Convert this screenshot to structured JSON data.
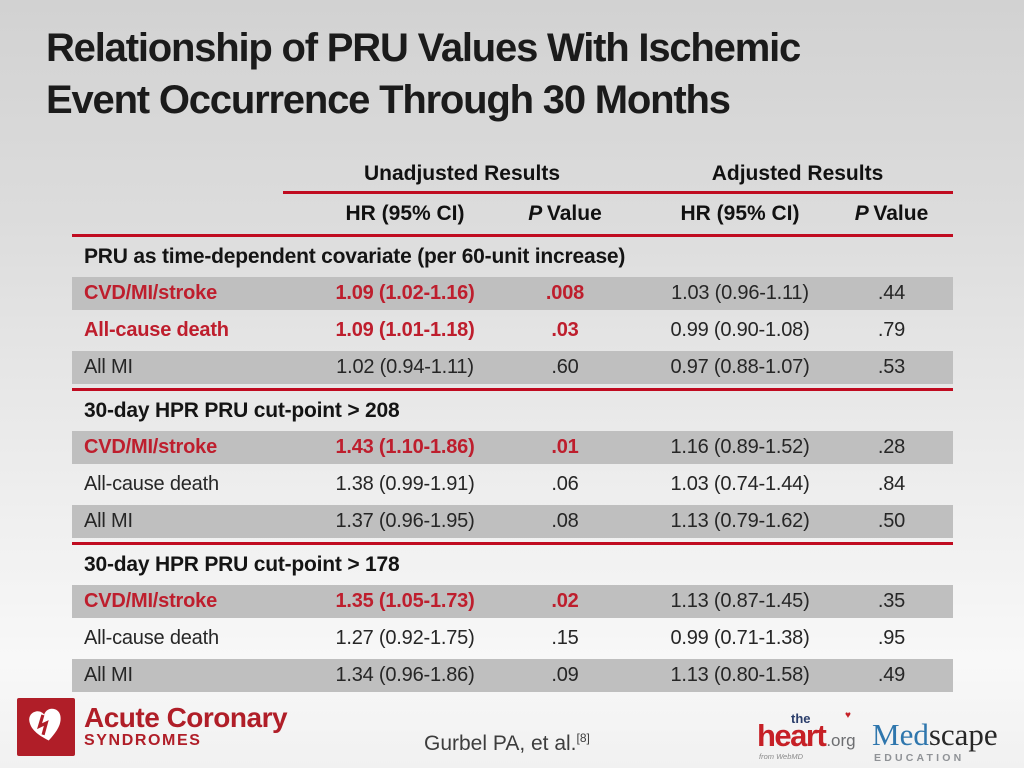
{
  "colors": {
    "accent_red": "#be1e2d",
    "line_red": "#c00b20",
    "row_shade": "#bfbfbf",
    "text_dark": "#262626",
    "bg_top": "#d2d2d2",
    "bg_bottom": "#f8f8f8",
    "acs_red": "#b01e28",
    "heart_red": "#c62026",
    "navy": "#2b3e6b",
    "med_blue": "#2e76ad",
    "gray_logo": "#6d6e71"
  },
  "slide": {
    "title_line1": "Relationship of PRU Values With Ischemic",
    "title_line2": "Event Occurrence Through 30 Months"
  },
  "table": {
    "group_headers": [
      "Unadjusted Results",
      "Adjusted Results"
    ],
    "col_headers": {
      "hr": "HR (95% CI)",
      "p_italic": "P",
      "p_value": "Value"
    },
    "sections": [
      {
        "heading": "PRU as time-dependent covariate (per 60-unit increase)",
        "rows": [
          {
            "label": "CVD/MI/stroke",
            "u_hr": "1.09 (1.02-1.16)",
            "u_p": ".008",
            "a_hr": "1.03 (0.96-1.11)",
            "a_p": ".44",
            "highlight": true
          },
          {
            "label": "All-cause death",
            "u_hr": "1.09 (1.01-1.18)",
            "u_p": ".03",
            "a_hr": "0.99 (0.90-1.08)",
            "a_p": ".79",
            "highlight": true
          },
          {
            "label": "All MI",
            "u_hr": "1.02 (0.94-1.11)",
            "u_p": ".60",
            "a_hr": "0.97 (0.88-1.07)",
            "a_p": ".53",
            "highlight": false
          }
        ]
      },
      {
        "heading": "30-day HPR PRU cut-point > 208",
        "rows": [
          {
            "label": "CVD/MI/stroke",
            "u_hr": "1.43 (1.10-1.86)",
            "u_p": ".01",
            "a_hr": "1.16 (0.89-1.52)",
            "a_p": ".28",
            "highlight": true
          },
          {
            "label": "All-cause death",
            "u_hr": "1.38 (0.99-1.91)",
            "u_p": ".06",
            "a_hr": "1.03 (0.74-1.44)",
            "a_p": ".84",
            "highlight": false
          },
          {
            "label": "All MI",
            "u_hr": "1.37 (0.96-1.95)",
            "u_p": ".08",
            "a_hr": "1.13 (0.79-1.62)",
            "a_p": ".50",
            "highlight": false
          }
        ]
      },
      {
        "heading": "30-day HPR PRU cut-point > 178",
        "rows": [
          {
            "label": "CVD/MI/stroke",
            "u_hr": "1.35 (1.05-1.73)",
            "u_p": ".02",
            "a_hr": "1.13 (0.87-1.45)",
            "a_p": ".35",
            "highlight": true
          },
          {
            "label": "All-cause death",
            "u_hr": "1.27 (0.92-1.75)",
            "u_p": ".15",
            "a_hr": "0.99 (0.71-1.38)",
            "a_p": ".95",
            "highlight": false
          },
          {
            "label": "All MI",
            "u_hr": "1.34 (0.96-1.86)",
            "u_p": ".09",
            "a_hr": "1.13 (0.80-1.58)",
            "a_p": ".49",
            "highlight": false
          }
        ]
      }
    ]
  },
  "footer": {
    "citation": "Gurbel PA, et al.",
    "citation_ref": "[8]",
    "acs_logo": {
      "line1": "Acute Coronary",
      "line2": "SYNDROMES"
    },
    "heart_logo": {
      "the": "the",
      "heart": "heart",
      "org": ".org",
      "tagline": "from WebMD",
      "mark": "♥"
    },
    "medscape_logo": {
      "med": "Med",
      "scape": "scape",
      "education": "EDUCATION"
    }
  }
}
